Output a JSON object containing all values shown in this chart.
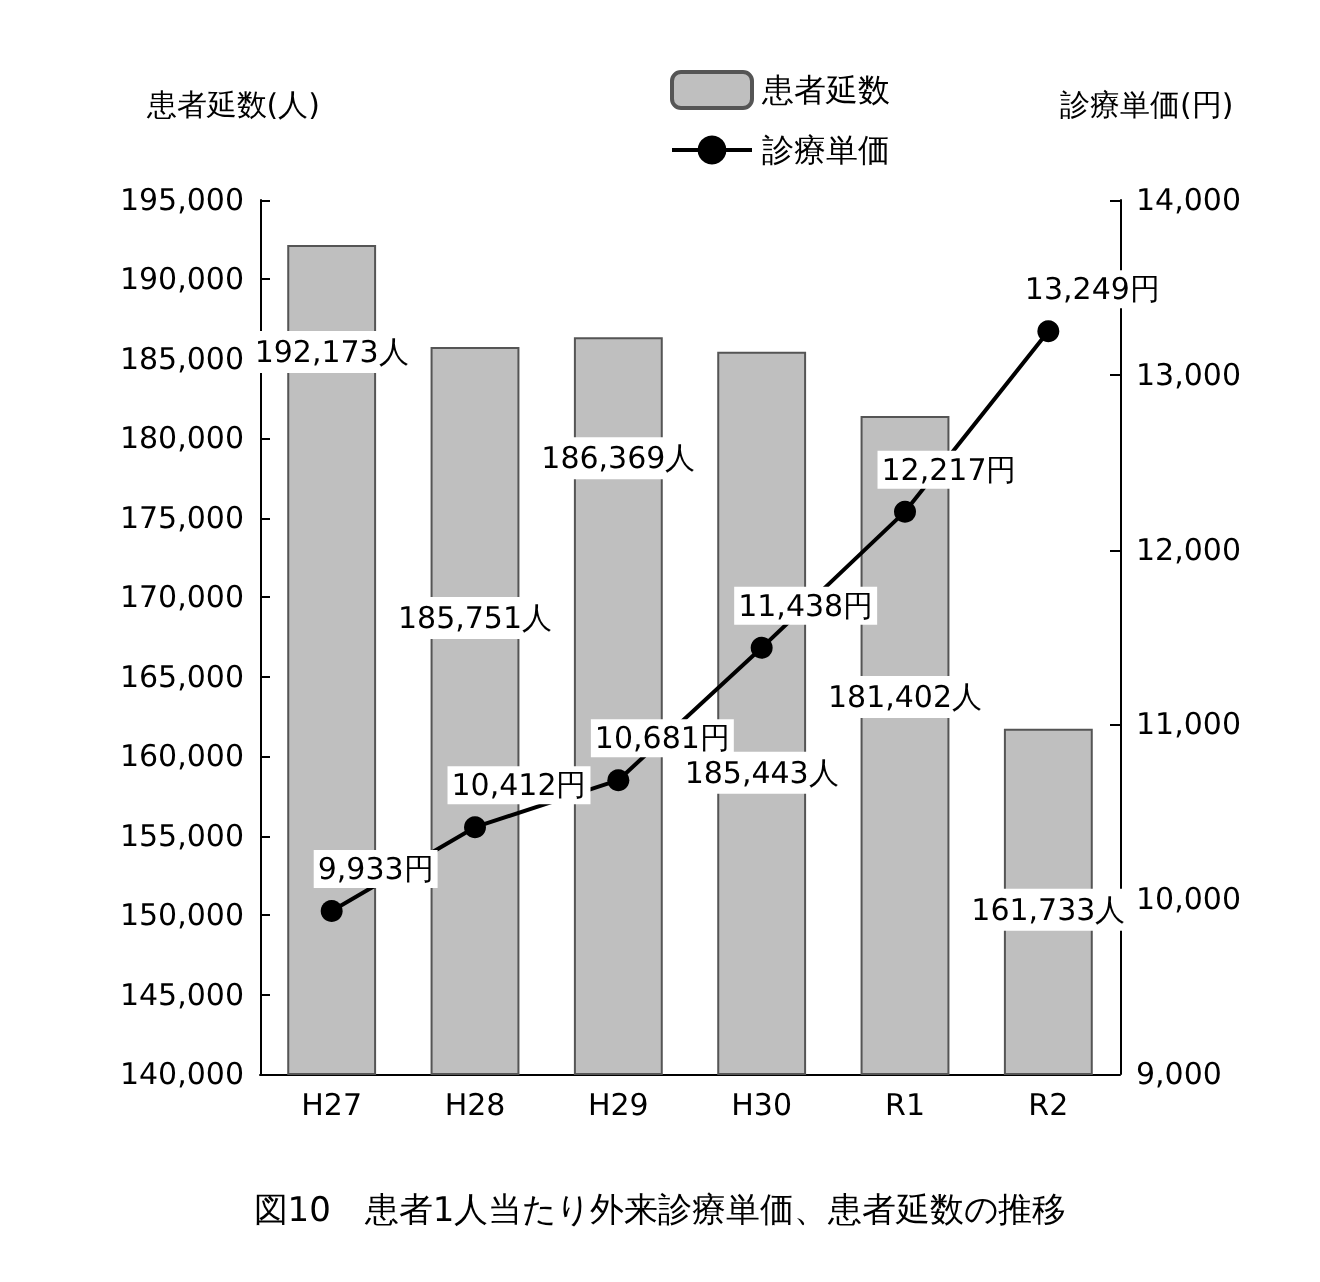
{
  "chart_data": {
    "type": "bar",
    "title": "図10　患者1人当たり外来診療単価、患者延数の推移",
    "ylabel": "患者延数(人)",
    "y2label": "診療単価(円)",
    "categories": [
      "H27",
      "H28",
      "H29",
      "H30",
      "R1",
      "R2"
    ],
    "series": [
      {
        "name": "患者延数",
        "color": "#bfbfbf",
        "values": [
          192173,
          185751,
          186369,
          185443,
          181402,
          161733
        ],
        "value_labels": [
          "192,173人",
          "185,751人",
          "186,369人",
          "185,443人",
          "181,402人",
          "161,733人"
        ]
      },
      {
        "name": "診療単価",
        "type": "line",
        "axis": "y2",
        "color": "#000000",
        "marker": "circle",
        "values": [
          9933,
          10412,
          10681,
          11438,
          12217,
          13249
        ],
        "value_labels": [
          "9,933円",
          "10,412円",
          "10,681円",
          "11,438円",
          "12,217円",
          "13,249円"
        ]
      }
    ],
    "ylim": [
      140000,
      195000
    ],
    "yticks": [
      {
        "value": 140000,
        "label": "140,000"
      },
      {
        "value": 145000,
        "label": "145,000"
      },
      {
        "value": 150000,
        "label": "150,000"
      },
      {
        "value": 155000,
        "label": "155,000"
      },
      {
        "value": 160000,
        "label": "160,000"
      },
      {
        "value": 165000,
        "label": "165,000"
      },
      {
        "value": 170000,
        "label": "170,000"
      },
      {
        "value": 175000,
        "label": "175,000"
      },
      {
        "value": 180000,
        "label": "180,000"
      },
      {
        "value": 185000,
        "label": "185,000"
      },
      {
        "value": 190000,
        "label": "190,000"
      },
      {
        "value": 195000,
        "label": "195,000"
      }
    ],
    "y2lim": [
      9000,
      14000
    ],
    "y2ticks": [
      {
        "value": 9000,
        "label": "9,000"
      },
      {
        "value": 10000,
        "label": "10,000"
      },
      {
        "value": 11000,
        "label": "11,000"
      },
      {
        "value": 12000,
        "label": "12,000"
      },
      {
        "value": 13000,
        "label": "13,000"
      },
      {
        "value": 14000,
        "label": "14,000"
      }
    ],
    "grid": false,
    "legend": "top right"
  }
}
